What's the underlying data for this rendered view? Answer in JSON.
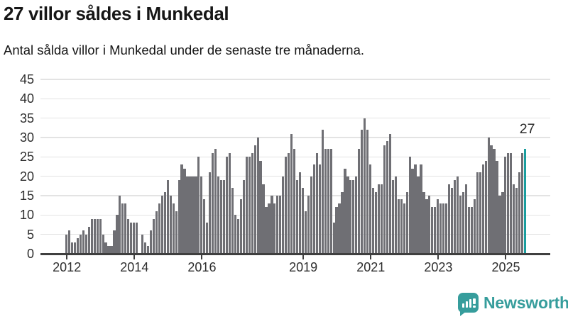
{
  "header": {
    "title": "27 villor såldes i Munkedal",
    "subtitle": "Antal sålda villor i Munkedal under de senaste tre månaderna."
  },
  "footer": {
    "brand": "Newsworthy",
    "logo_icon": "newsworthy-speech-bubble-bar-chart-icon"
  },
  "colors": {
    "bar": "#6f6f74",
    "highlight": "#1b9e9f",
    "grid": "#e3e3e3",
    "axis": "#3f3f3f",
    "text": "#2e2e2e",
    "brand": "#369d9c"
  },
  "chart_data": {
    "type": "bar",
    "title": "27 villor såldes i Munkedal",
    "subtitle": "Antal sålda villor i Munkedal under de senaste tre månaderna.",
    "x_unit": "månad (rullande tremånadersperiod)",
    "start_month": "2012-01",
    "end_month": "2025-08",
    "x_tick_labels": [
      "2012",
      "2014",
      "2016",
      "2019",
      "2021",
      "2023",
      "2025"
    ],
    "y_ticks": [
      0,
      5,
      10,
      15,
      20,
      25,
      30,
      35,
      40,
      45
    ],
    "ylim": [
      0,
      45
    ],
    "grid": true,
    "highlight_last": true,
    "last_value_label": "27",
    "values": [
      5,
      6,
      3,
      3,
      4,
      5,
      6,
      5,
      7,
      9,
      9,
      9,
      9,
      5,
      3,
      2,
      2,
      6,
      10,
      15,
      13,
      13,
      9,
      8,
      8,
      8,
      0,
      5,
      3,
      2,
      6,
      9,
      11,
      13,
      15,
      16,
      19,
      15,
      13,
      11,
      19,
      23,
      22,
      20,
      20,
      20,
      20,
      25,
      20,
      14,
      8,
      21,
      26,
      27,
      20,
      19,
      19,
      25,
      26,
      17,
      10,
      9,
      14,
      19,
      25,
      25,
      26,
      28,
      30,
      24,
      18,
      12,
      13,
      15,
      13,
      15,
      15,
      20,
      25,
      26,
      31,
      27,
      19,
      21,
      17,
      11,
      15,
      20,
      23,
      26,
      23,
      32,
      27,
      27,
      27,
      8,
      12,
      13,
      16,
      22,
      20,
      19,
      19,
      20,
      27,
      32,
      35,
      32,
      23,
      17,
      16,
      18,
      18,
      28,
      29,
      31,
      19,
      20,
      14,
      14,
      13,
      16,
      25,
      22,
      23,
      20,
      23,
      16,
      14,
      15,
      12,
      12,
      14,
      13,
      13,
      13,
      18,
      17,
      19,
      20,
      15,
      16,
      18,
      12,
      12,
      14,
      21,
      21,
      23,
      24,
      30,
      28,
      27,
      24,
      15,
      16,
      25,
      26,
      26,
      18,
      17,
      21,
      26,
      27
    ]
  }
}
